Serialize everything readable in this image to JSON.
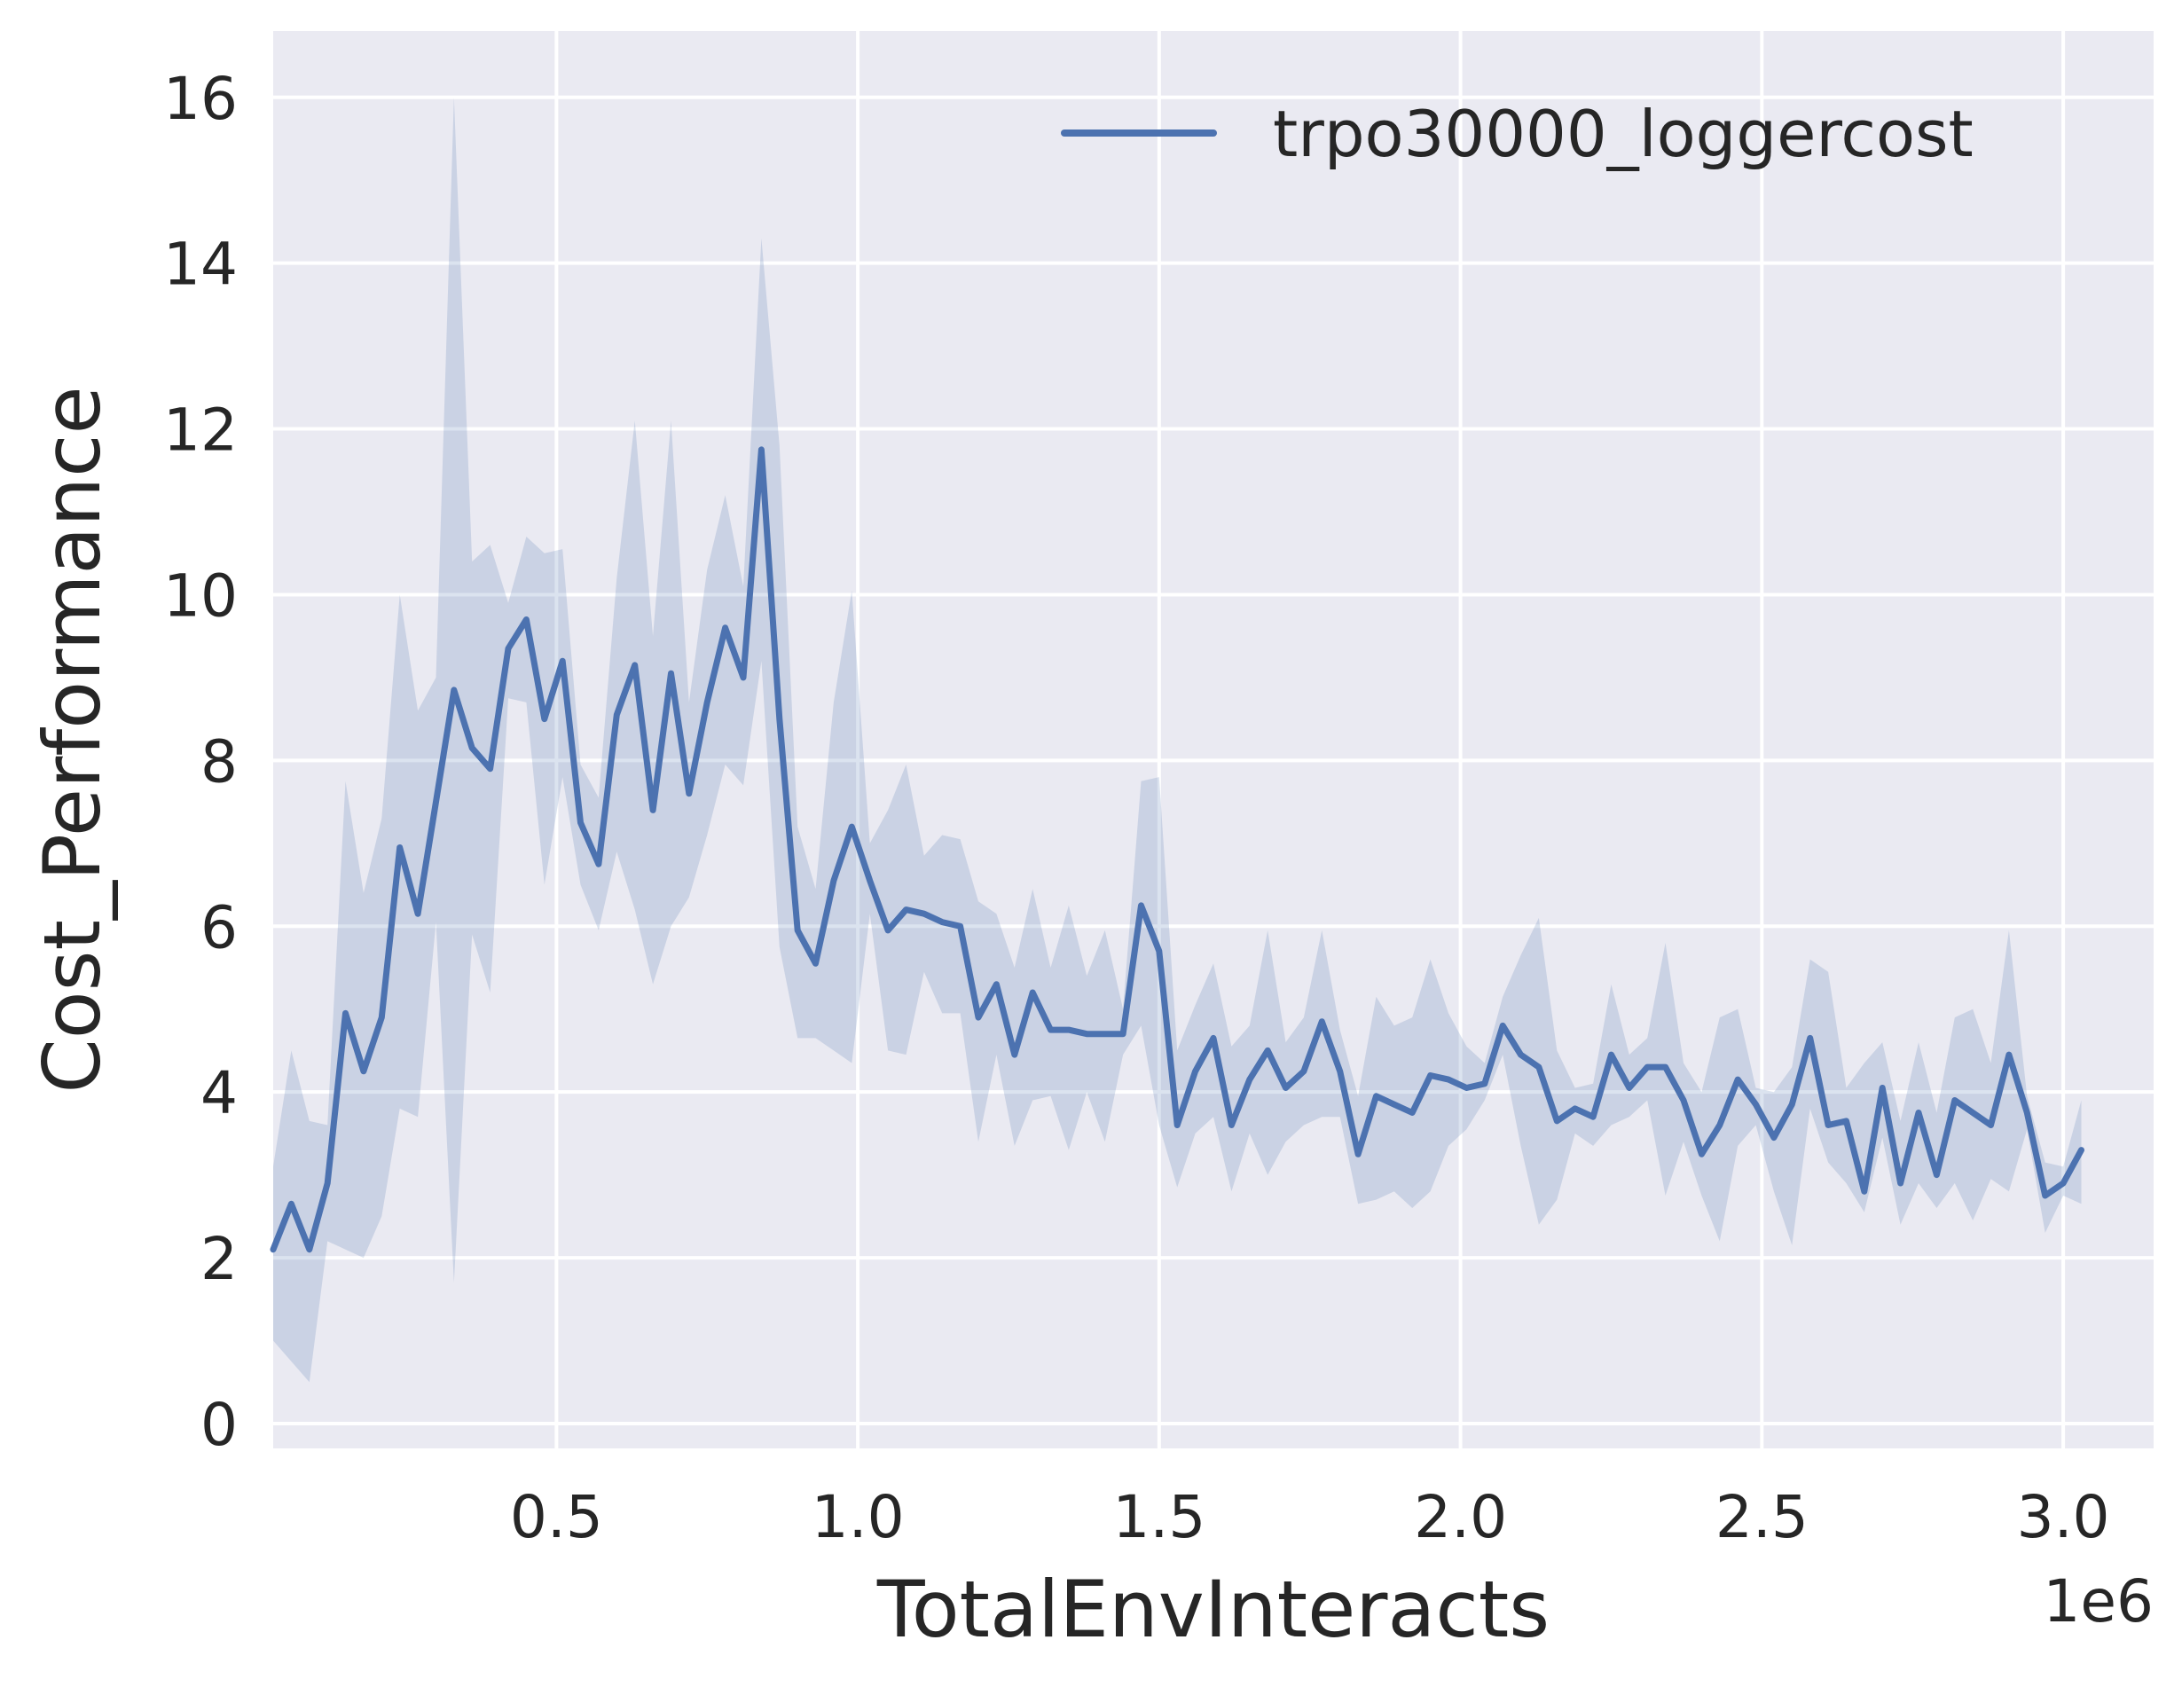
{
  "chart_data": {
    "type": "line",
    "xlabel": "TotalEnvInteracts",
    "ylabel": "Cost_Performance",
    "x_offset_label": "1e6",
    "xlim": [
      0.03,
      3.15
    ],
    "ylim": [
      -0.3,
      16.8
    ],
    "xticks": [
      0.5,
      1.0,
      1.5,
      2.0,
      2.5,
      3.0
    ],
    "xtick_labels": [
      "0.5",
      "1.0",
      "1.5",
      "2.0",
      "2.5",
      "3.0"
    ],
    "yticks": [
      0,
      2,
      4,
      6,
      8,
      10,
      12,
      14,
      16
    ],
    "ytick_labels": [
      "0",
      "2",
      "4",
      "6",
      "8",
      "10",
      "12",
      "14",
      "16"
    ],
    "grid": true,
    "legend_position": "top-right",
    "colors": {
      "background": "#eaeaf2",
      "grid": "#ffffff",
      "line": "#4c72b0",
      "band": "#4c72b0"
    },
    "series": [
      {
        "name": "trpo30000_loggercost",
        "x": [
          0.03,
          0.06,
          0.09,
          0.12,
          0.15,
          0.18,
          0.21,
          0.24,
          0.27,
          0.3,
          0.33,
          0.36,
          0.39,
          0.42,
          0.45,
          0.48,
          0.51,
          0.54,
          0.57,
          0.6,
          0.63,
          0.66,
          0.69,
          0.72,
          0.75,
          0.78,
          0.81,
          0.84,
          0.87,
          0.9,
          0.93,
          0.96,
          0.99,
          1.02,
          1.05,
          1.08,
          1.11,
          1.14,
          1.17,
          1.2,
          1.23,
          1.26,
          1.29,
          1.32,
          1.35,
          1.38,
          1.41,
          1.44,
          1.47,
          1.5,
          1.53,
          1.56,
          1.59,
          1.62,
          1.65,
          1.68,
          1.71,
          1.74,
          1.77,
          1.8,
          1.83,
          1.86,
          1.89,
          1.92,
          1.95,
          1.98,
          2.01,
          2.04,
          2.07,
          2.1,
          2.13,
          2.16,
          2.19,
          2.22,
          2.25,
          2.28,
          2.31,
          2.34,
          2.37,
          2.4,
          2.43,
          2.46,
          2.49,
          2.52,
          2.55,
          2.58,
          2.61,
          2.64,
          2.67,
          2.7,
          2.73,
          2.76,
          2.79,
          2.82,
          2.85,
          2.88,
          2.91,
          2.94,
          2.97,
          3.0,
          3.03
        ],
        "y": [
          2.1,
          2.65,
          2.1,
          2.9,
          4.95,
          4.25,
          4.9,
          6.95,
          6.15,
          7.5,
          8.85,
          8.15,
          7.9,
          9.35,
          9.7,
          8.5,
          9.2,
          7.25,
          6.75,
          8.55,
          9.15,
          7.4,
          9.05,
          7.6,
          8.7,
          9.6,
          9.0,
          11.75,
          8.5,
          5.95,
          5.55,
          6.55,
          7.2,
          6.55,
          5.95,
          6.2,
          6.15,
          6.05,
          6.0,
          4.9,
          5.3,
          4.45,
          5.2,
          4.75,
          4.75,
          4.7,
          4.7,
          4.7,
          6.25,
          5.7,
          3.6,
          4.25,
          4.65,
          3.6,
          4.15,
          4.5,
          4.05,
          4.25,
          4.85,
          4.25,
          3.25,
          3.95,
          3.85,
          3.75,
          4.2,
          4.15,
          4.05,
          4.1,
          4.8,
          4.45,
          4.3,
          3.65,
          3.8,
          3.7,
          4.45,
          4.05,
          4.3,
          4.3,
          3.9,
          3.25,
          3.6,
          4.15,
          3.85,
          3.45,
          3.85,
          4.65,
          3.6,
          3.65,
          2.8,
          4.05,
          2.9,
          3.75,
          3.0,
          3.9,
          3.75,
          3.6,
          4.45,
          3.75,
          2.75,
          2.9,
          3.3
        ],
        "upper": [
          3.1,
          4.5,
          3.65,
          3.6,
          7.75,
          6.4,
          7.3,
          10.0,
          8.6,
          9.0,
          16.0,
          10.4,
          10.6,
          9.9,
          10.7,
          10.5,
          10.55,
          7.95,
          7.55,
          10.2,
          12.1,
          9.5,
          12.1,
          8.7,
          10.3,
          11.2,
          10.1,
          14.3,
          11.8,
          7.2,
          6.45,
          8.7,
          10.05,
          7.0,
          7.4,
          7.95,
          6.85,
          7.1,
          7.05,
          6.3,
          6.15,
          5.5,
          6.45,
          5.5,
          6.25,
          5.4,
          5.95,
          5.0,
          7.75,
          7.8,
          4.5,
          5.05,
          5.55,
          4.55,
          4.8,
          5.95,
          4.6,
          4.9,
          5.95,
          4.75,
          3.95,
          5.15,
          4.8,
          4.9,
          5.6,
          4.95,
          4.55,
          4.35,
          5.15,
          5.65,
          6.1,
          4.5,
          4.05,
          4.1,
          5.3,
          4.45,
          4.65,
          5.8,
          4.35,
          4.0,
          4.9,
          5.0,
          4.05,
          4.0,
          4.3,
          5.6,
          5.45,
          4.05,
          4.35,
          4.6,
          3.65,
          4.6,
          3.75,
          4.9,
          5.0,
          4.35,
          5.95,
          3.95,
          3.15,
          3.1,
          3.9
        ],
        "lower": [
          1.0,
          0.75,
          0.5,
          2.2,
          2.1,
          2.0,
          2.5,
          3.8,
          3.7,
          6.05,
          1.7,
          5.9,
          5.2,
          8.75,
          8.7,
          6.5,
          7.8,
          6.5,
          5.95,
          6.9,
          6.2,
          5.3,
          6.0,
          6.35,
          7.1,
          7.95,
          7.7,
          9.2,
          5.75,
          4.65,
          4.65,
          4.5,
          4.35,
          6.15,
          4.5,
          4.45,
          5.45,
          4.95,
          4.95,
          3.4,
          4.45,
          3.35,
          3.9,
          3.95,
          3.3,
          4.0,
          3.4,
          4.45,
          4.8,
          3.6,
          2.85,
          3.5,
          3.7,
          2.8,
          3.5,
          3.0,
          3.4,
          3.6,
          3.7,
          3.7,
          2.65,
          2.7,
          2.8,
          2.6,
          2.8,
          3.35,
          3.55,
          3.9,
          4.45,
          3.35,
          2.4,
          2.7,
          3.5,
          3.35,
          3.6,
          3.7,
          3.9,
          2.75,
          3.4,
          2.75,
          2.2,
          3.35,
          3.6,
          2.8,
          2.15,
          3.8,
          3.15,
          2.9,
          2.55,
          3.45,
          2.4,
          2.9,
          2.6,
          2.9,
          2.45,
          2.95,
          2.8,
          3.55,
          2.3,
          2.75,
          2.65
        ]
      }
    ]
  }
}
